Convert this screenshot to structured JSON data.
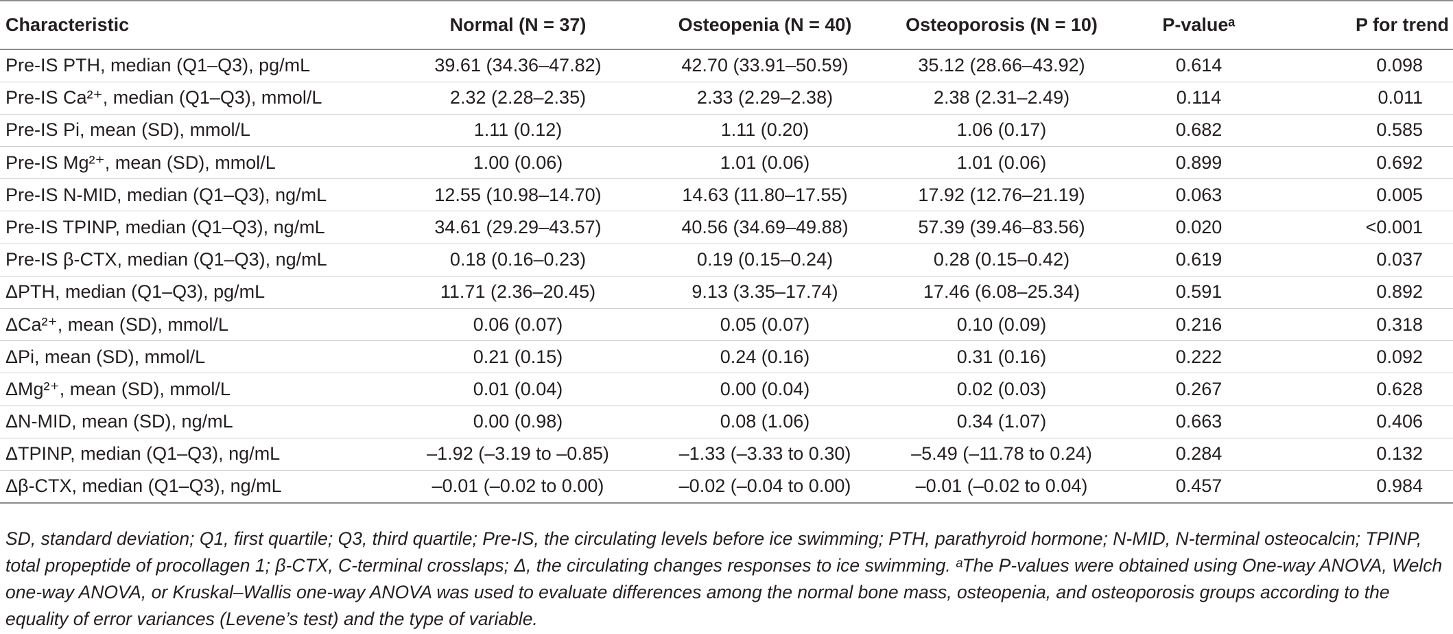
{
  "table": {
    "headers": [
      "Characteristic",
      "Normal (N = 37)",
      "Osteopenia (N = 40)",
      "Osteoporosis (N = 10)",
      "P-valueᵃ",
      "P for trend"
    ],
    "rows": [
      [
        "Pre-IS PTH, median (Q1–Q3), pg/mL",
        "39.61 (34.36–47.82)",
        "42.70 (33.91–50.59)",
        "35.12 (28.66–43.92)",
        "0.614",
        "0.098"
      ],
      [
        "Pre-IS Ca²⁺, median (Q1–Q3), mmol/L",
        "2.32 (2.28–2.35)",
        "2.33 (2.29–2.38)",
        "2.38 (2.31–2.49)",
        "0.114",
        "0.011"
      ],
      [
        "Pre-IS Pi, mean (SD), mmol/L",
        "1.11 (0.12)",
        "1.11 (0.20)",
        "1.06 (0.17)",
        "0.682",
        "0.585"
      ],
      [
        "Pre-IS Mg²⁺, mean (SD), mmol/L",
        "1.00 (0.06)",
        "1.01 (0.06)",
        "1.01 (0.06)",
        "0.899",
        "0.692"
      ],
      [
        "Pre-IS N-MID, median (Q1–Q3), ng/mL",
        "12.55 (10.98–14.70)",
        "14.63 (11.80–17.55)",
        "17.92 (12.76–21.19)",
        "0.063",
        "0.005"
      ],
      [
        "Pre-IS TPINP, median (Q1–Q3), ng/mL",
        "34.61 (29.29–43.57)",
        "40.56 (34.69–49.88)",
        "57.39 (39.46–83.56)",
        "0.020",
        "<0.001"
      ],
      [
        "Pre-IS β-CTX, median (Q1–Q3), ng/mL",
        "0.18 (0.16–0.23)",
        "0.19 (0.15–0.24)",
        "0.28 (0.15–0.42)",
        "0.619",
        "0.037"
      ],
      [
        "ΔPTH, median (Q1–Q3), pg/mL",
        "11.71 (2.36–20.45)",
        "9.13 (3.35–17.74)",
        "17.46 (6.08–25.34)",
        "0.591",
        "0.892"
      ],
      [
        "ΔCa²⁺, mean (SD), mmol/L",
        "0.06 (0.07)",
        "0.05 (0.07)",
        "0.10 (0.09)",
        "0.216",
        "0.318"
      ],
      [
        "ΔPi, mean (SD), mmol/L",
        "0.21 (0.15)",
        "0.24 (0.16)",
        "0.31 (0.16)",
        "0.222",
        "0.092"
      ],
      [
        "ΔMg²⁺, mean (SD), mmol/L",
        "0.01 (0.04)",
        "0.00 (0.04)",
        "0.02 (0.03)",
        "0.267",
        "0.628"
      ],
      [
        "ΔN-MID, mean (SD), ng/mL",
        "0.00 (0.98)",
        "0.08 (1.06)",
        "0.34 (1.07)",
        "0.663",
        "0.406"
      ],
      [
        "ΔTPINP, median (Q1–Q3), ng/mL",
        "–1.92 (–3.19 to –0.85)",
        "–1.33 (–3.33 to 0.30)",
        "–5.49 (–11.78 to 0.24)",
        "0.284",
        "0.132"
      ],
      [
        "Δβ-CTX, median (Q1–Q3), ng/mL",
        "–0.01 (–0.02 to 0.00)",
        "–0.02 (–0.04 to 0.00)",
        "–0.01 (–0.02 to 0.04)",
        "0.457",
        "0.984"
      ]
    ]
  },
  "footnote": "SD, standard deviation; Q1, first quartile; Q3, third quartile; Pre-IS, the circulating levels before ice swimming; PTH, parathyroid hormone; N-MID, N-terminal osteocalcin; TPINP, total propeptide of procollagen 1; β-CTX, C-terminal crosslaps; Δ, the circulating changes responses to ice swimming. ᵃThe P-values were obtained using One-way ANOVA, Welch one-way ANOVA, or Kruskal–Wallis one-way ANOVA was used to evaluate differences among the normal bone mass, osteopenia, and osteoporosis groups according to the equality of error variances (Levene’s test) and the type of variable."
}
